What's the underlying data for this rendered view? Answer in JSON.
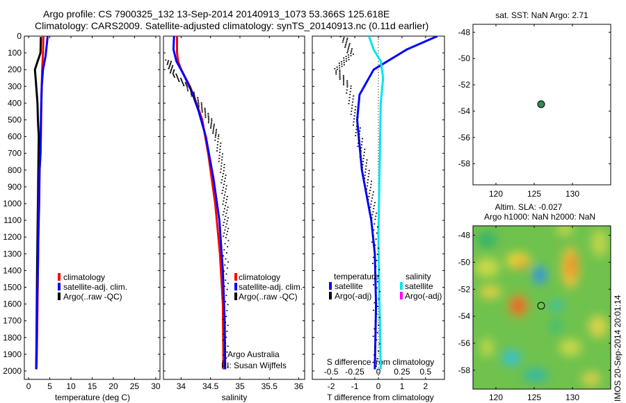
{
  "header": {
    "line1": "Argo profile: CS 7900325_132 13-Sep-2014 20140913_1073 53.366S 125.618E",
    "line2": "Climatology: CARS2009. Satellite-adjusted climatology: synTS_20140913.nc (0.11d earlier)"
  },
  "timestamp": "IMOS 20-Sep-2014 20:01:14",
  "colors": {
    "climatology": "#ff0000",
    "satellite": "#0000ff",
    "argo": "#000000",
    "satellite_salinity": "#00e5ee",
    "argo_adj_salinity": "#ff00ff",
    "float_marker": "#2e8b57"
  },
  "panels": {
    "temperature": {
      "xlabel": "temperature (deg C)",
      "legend": [
        "climatology",
        "satellite-adj. clim.",
        "Argo(..raw -QC)"
      ]
    },
    "salinity": {
      "xlabel": "salinity",
      "legend": [
        "climatology",
        "satellite-adj. clim.",
        "Argo(..raw -QC)"
      ],
      "note1": "Argo Australia",
      "note2": "PI: Susan Wijffels"
    },
    "difference": {
      "xlabel": "T difference from climatology",
      "top_xlabel": "S difference from climatology",
      "legend_titles": [
        "temperature",
        "salinity"
      ],
      "legend_left": [
        "satellite",
        "Argo(-adj)"
      ],
      "legend_right": [
        "satellite",
        "Argo(-adj)"
      ]
    },
    "map_sst": {
      "title": "sat. SST: NaN Argo: 2.71"
    },
    "map_sla": {
      "title1": "Altim. SLA: -0.027",
      "title2": "Argo h1000: NaN h2000: NaN"
    }
  },
  "chart_data": [
    {
      "type": "line",
      "name": "temperature profile",
      "xlabel": "temperature (deg C)",
      "ylabel": "",
      "xlim": [
        -1,
        31
      ],
      "ylim": [
        2050,
        0
      ],
      "xticks": [
        "0",
        "5",
        "10",
        "15",
        "20",
        "25",
        "30"
      ],
      "yticks": [
        "0",
        "100",
        "200",
        "300",
        "400",
        "500",
        "600",
        "700",
        "800",
        "900",
        "1000",
        "1100",
        "1200",
        "1300",
        "1400",
        "1500",
        "1600",
        "1700",
        "1800",
        "1900",
        "2000"
      ],
      "series": [
        {
          "name": "climatology",
          "x": [
            3.5,
            3.4,
            3.2,
            3.0,
            2.9,
            2.8,
            2.6,
            2.5,
            2.4,
            2.3,
            2.2,
            2.1,
            2.0,
            1.9,
            1.8
          ],
          "y": [
            0,
            100,
            200,
            400,
            600,
            700,
            800,
            900,
            1000,
            1200,
            1400,
            1600,
            1800,
            1950,
            1990
          ]
        },
        {
          "name": "satellite-adj. clim.",
          "x": [
            4.5,
            4.3,
            4.0,
            3.4,
            3.1,
            2.9,
            2.8,
            2.6,
            2.5,
            2.3,
            2.2,
            2.0,
            1.9,
            1.8
          ],
          "y": [
            0,
            50,
            120,
            200,
            300,
            500,
            700,
            800,
            1000,
            1200,
            1400,
            1600,
            1800,
            1990
          ]
        },
        {
          "name": "Argo(..raw -QC)",
          "x": [
            2.9,
            2.8,
            2.0,
            1.5,
            1.6,
            1.8,
            2.1,
            2.2,
            2.4,
            2.3,
            2.2,
            2.1,
            2.0,
            1.9,
            1.8
          ],
          "y": [
            5,
            100,
            160,
            200,
            230,
            300,
            400,
            500,
            600,
            800,
            1000,
            1200,
            1400,
            1700,
            1990
          ]
        }
      ]
    },
    {
      "type": "line",
      "name": "salinity profile",
      "xlabel": "salinity",
      "xlim": [
        33.7,
        36.1
      ],
      "ylim": [
        2050,
        0
      ],
      "xticks": [
        "34",
        "34.5",
        "35",
        "35.5",
        "36"
      ],
      "series": [
        {
          "name": "climatology",
          "x": [
            33.93,
            33.93,
            33.95,
            34.0,
            34.15,
            34.26,
            34.36,
            34.46,
            34.58,
            34.66,
            34.71,
            34.72
          ],
          "y": [
            0,
            100,
            150,
            200,
            300,
            400,
            500,
            700,
            1000,
            1300,
            1600,
            1990
          ]
        },
        {
          "name": "satellite-adj. clim.",
          "x": [
            33.88,
            33.87,
            33.92,
            34.03,
            34.18,
            34.3,
            34.42,
            34.55,
            34.65,
            34.71,
            34.74,
            34.75
          ],
          "y": [
            0,
            80,
            150,
            220,
            330,
            450,
            600,
            850,
            1100,
            1400,
            1700,
            1990
          ]
        },
        {
          "name": "Argo(..raw -QC)",
          "x": [
            33.77,
            33.85,
            34.1,
            34.3,
            34.48,
            34.6,
            34.7,
            34.74,
            34.75,
            34.74,
            34.74
          ],
          "y": [
            140,
            220,
            300,
            400,
            500,
            600,
            800,
            1000,
            1200,
            1600,
            1990
          ]
        }
      ]
    },
    {
      "type": "line",
      "name": "difference from climatology",
      "xlabel": "T difference from climatology",
      "x2label": "S difference from climatology",
      "xlim": [
        -2.8,
        2.8
      ],
      "ylim": [
        2050,
        0
      ],
      "xticks": [
        "-2",
        "-1",
        "0",
        "1",
        "2"
      ],
      "x2ticks": [
        "-0.5",
        "-0.25",
        "0",
        "0.25",
        "0.5"
      ],
      "series": [
        {
          "name": "temperature satellite",
          "x": [
            2.5,
            1.2,
            -0.2,
            -0.8,
            -0.9,
            -0.7,
            -0.3,
            -0.15,
            -0.1,
            -0.15
          ],
          "y": [
            0,
            80,
            200,
            350,
            500,
            800,
            1100,
            1300,
            1600,
            1990
          ]
        },
        {
          "name": "temperature Argo(-adj)",
          "x": [
            -1.5,
            -1.2,
            -1.8,
            -1.3,
            -1.0,
            -0.7,
            -0.4,
            -0.2,
            -0.1,
            -0.12
          ],
          "y": [
            0,
            100,
            200,
            300,
            500,
            700,
            900,
            1100,
            1500,
            1990
          ]
        },
        {
          "name": "salinity satellite",
          "x": [
            -0.4,
            -0.2,
            0.1,
            0.2,
            0.1,
            0.05,
            0.0,
            0.05,
            0.1
          ],
          "y": [
            0,
            80,
            150,
            250,
            400,
            800,
            1200,
            1600,
            1990
          ]
        }
      ]
    },
    {
      "type": "scatter",
      "name": "float location",
      "xlim": [
        117,
        135
      ],
      "ylim": [
        -59.6,
        -47.4
      ],
      "xticks": [
        "120",
        "125",
        "130"
      ],
      "yticks": [
        "-48",
        "-50",
        "-52",
        "-54",
        "-56",
        "-58"
      ],
      "points": [
        {
          "x": 125.618,
          "y": -53.366
        }
      ]
    },
    {
      "type": "heatmap",
      "name": "sea level anomaly",
      "xlim": [
        117,
        135
      ],
      "ylim": [
        -59.4,
        -47.3
      ],
      "xticks": [
        "120",
        "125",
        "130"
      ],
      "yticks": [
        "-48",
        "-50",
        "-52",
        "-54",
        "-56",
        "-58"
      ],
      "points": [
        {
          "x": 125.618,
          "y": -53.366
        }
      ]
    }
  ]
}
